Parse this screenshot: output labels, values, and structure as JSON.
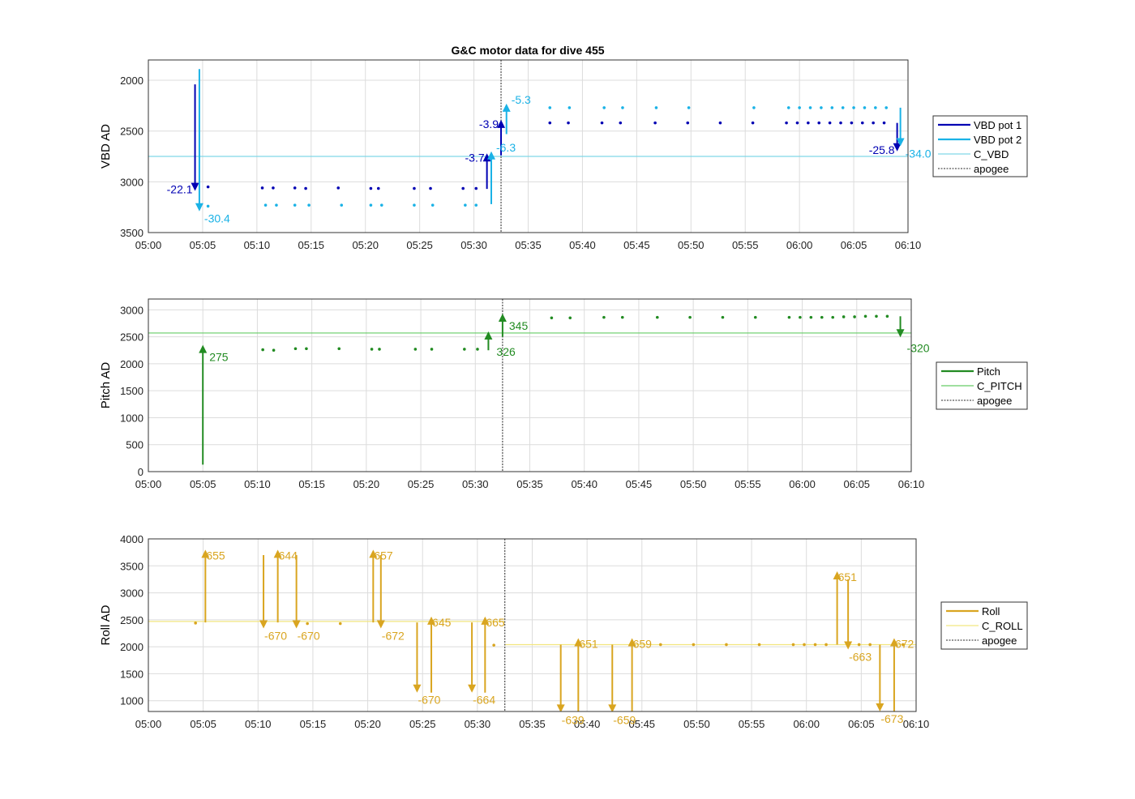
{
  "figure_title": "G&C motor data for dive 455",
  "time_ticks": [
    "05:00",
    "05:05",
    "05:10",
    "05:15",
    "05:20",
    "05:25",
    "05:30",
    "05:35",
    "05:40",
    "05:45",
    "05:50",
    "05:55",
    "06:00",
    "06:05",
    "06:10"
  ],
  "colors": {
    "vbd1": "#0000b3",
    "vbd2": "#1ab2e6",
    "c_vbd": "#80d8e6",
    "pitch": "#228b22",
    "c_pitch": "#66cc66",
    "roll": "#d9a520",
    "c_roll": "#f2e680",
    "apogee": "#555555",
    "grid": "#dcdcdc"
  },
  "chart_data": [
    {
      "type": "line",
      "title": "G&C motor data for dive 455",
      "ylabel": "VBD AD",
      "ylim": [
        3500,
        1800
      ],
      "y_reversed": true,
      "yticks": [
        2000,
        2500,
        3000,
        3500
      ],
      "xlim": [
        "05:00",
        "06:10"
      ],
      "grid": true,
      "legend_position": "outside-right",
      "legend": [
        "VBD pot 1",
        "VBD pot 2",
        "C_VBD",
        "apogee"
      ],
      "reference_lines": [
        {
          "name": "C_VBD",
          "y": 2750
        }
      ],
      "apogee": "05:32.5",
      "series": [
        {
          "name": "VBD pot 1",
          "points": [
            {
              "x": "05:05.5",
              "y": 3050
            },
            {
              "x": "05:10.5",
              "y": 3060
            },
            {
              "x": "05:11.5",
              "y": 3060
            },
            {
              "x": "05:13.5",
              "y": 3060
            },
            {
              "x": "05:14.5",
              "y": 3065
            },
            {
              "x": "05:17.5",
              "y": 3060
            },
            {
              "x": "05:20.5",
              "y": 3065
            },
            {
              "x": "05:21.2",
              "y": 3065
            },
            {
              "x": "05:24.5",
              "y": 3065
            },
            {
              "x": "05:26.0",
              "y": 3065
            },
            {
              "x": "05:29.0",
              "y": 3065
            },
            {
              "x": "05:30.2",
              "y": 3065
            },
            {
              "x": "05:37.0",
              "y": 2420
            },
            {
              "x": "05:38.7",
              "y": 2420
            },
            {
              "x": "05:41.8",
              "y": 2420
            },
            {
              "x": "05:43.5",
              "y": 2420
            },
            {
              "x": "05:46.7",
              "y": 2420
            },
            {
              "x": "05:49.7",
              "y": 2420
            },
            {
              "x": "05:52.7",
              "y": 2420
            },
            {
              "x": "05:55.7",
              "y": 2420
            },
            {
              "x": "05:58.8",
              "y": 2420
            },
            {
              "x": "05:59.8",
              "y": 2420
            },
            {
              "x": "06:00.8",
              "y": 2420
            },
            {
              "x": "06:01.8",
              "y": 2420
            },
            {
              "x": "06:02.8",
              "y": 2420
            },
            {
              "x": "06:03.8",
              "y": 2420
            },
            {
              "x": "06:04.8",
              "y": 2420
            },
            {
              "x": "06:05.8",
              "y": 2420
            },
            {
              "x": "06:06.8",
              "y": 2420
            },
            {
              "x": "06:07.8",
              "y": 2420
            }
          ],
          "moves": [
            {
              "x": "05:04.3",
              "y_start": 2040,
              "y_end": 3090,
              "label": "-22.1"
            },
            {
              "x": "05:31.2",
              "y_start": 3070,
              "y_end": 2720,
              "label": "-3.7"
            },
            {
              "x": "05:32.5",
              "y_start": 2740,
              "y_end": 2390,
              "label": "-3.9"
            },
            {
              "x": "06:09.0",
              "y_start": 2420,
              "y_end": 2700,
              "label": "-25.8"
            }
          ]
        },
        {
          "name": "VBD pot 2",
          "points": [
            {
              "x": "05:05.5",
              "y": 3240
            },
            {
              "x": "05:10.8",
              "y": 3230
            },
            {
              "x": "05:11.8",
              "y": 3230
            },
            {
              "x": "05:13.5",
              "y": 3230
            },
            {
              "x": "05:14.8",
              "y": 3230
            },
            {
              "x": "05:17.8",
              "y": 3230
            },
            {
              "x": "05:20.5",
              "y": 3230
            },
            {
              "x": "05:21.5",
              "y": 3230
            },
            {
              "x": "05:24.5",
              "y": 3230
            },
            {
              "x": "05:26.2",
              "y": 3230
            },
            {
              "x": "05:29.2",
              "y": 3230
            },
            {
              "x": "05:30.2",
              "y": 3230
            },
            {
              "x": "05:37.0",
              "y": 2270
            },
            {
              "x": "05:38.8",
              "y": 2270
            },
            {
              "x": "05:42.0",
              "y": 2270
            },
            {
              "x": "05:43.7",
              "y": 2270
            },
            {
              "x": "05:46.8",
              "y": 2270
            },
            {
              "x": "05:49.8",
              "y": 2270
            },
            {
              "x": "05:55.8",
              "y": 2270
            },
            {
              "x": "05:59.0",
              "y": 2270
            },
            {
              "x": "06:00.0",
              "y": 2270
            },
            {
              "x": "06:01.0",
              "y": 2270
            },
            {
              "x": "06:02.0",
              "y": 2270
            },
            {
              "x": "06:03.0",
              "y": 2270
            },
            {
              "x": "06:04.0",
              "y": 2270
            },
            {
              "x": "06:05.0",
              "y": 2270
            },
            {
              "x": "06:06.0",
              "y": 2270
            },
            {
              "x": "06:07.0",
              "y": 2270
            },
            {
              "x": "06:08.0",
              "y": 2270
            }
          ],
          "moves": [
            {
              "x": "05:04.7",
              "y_start": 1890,
              "y_end": 3290,
              "label": "-30.4"
            },
            {
              "x": "05:31.6",
              "y_start": 3220,
              "y_end": 2700,
              "label": "-6.3"
            },
            {
              "x": "05:33.0",
              "y_start": 2530,
              "y_end": 2230,
              "label": "-5.3"
            },
            {
              "x": "06:09.3",
              "y_start": 2270,
              "y_end": 2650,
              "label": "-34.0"
            }
          ]
        }
      ]
    },
    {
      "type": "line",
      "ylabel": "Pitch AD",
      "ylim": [
        0,
        3200
      ],
      "yticks": [
        0,
        500,
        1000,
        1500,
        2000,
        2500,
        3000
      ],
      "xlim": [
        "05:00",
        "06:10"
      ],
      "grid": true,
      "legend_position": "outside-right",
      "legend": [
        "Pitch",
        "C_PITCH",
        "apogee"
      ],
      "reference_lines": [
        {
          "name": "C_PITCH",
          "y": 2570
        }
      ],
      "apogee": "05:32.5",
      "series": [
        {
          "name": "Pitch",
          "points": [
            {
              "x": "05:10.5",
              "y": 2260
            },
            {
              "x": "05:11.5",
              "y": 2250
            },
            {
              "x": "05:13.5",
              "y": 2280
            },
            {
              "x": "05:14.5",
              "y": 2280
            },
            {
              "x": "05:17.5",
              "y": 2280
            },
            {
              "x": "05:20.5",
              "y": 2270
            },
            {
              "x": "05:21.2",
              "y": 2270
            },
            {
              "x": "05:24.5",
              "y": 2270
            },
            {
              "x": "05:26.0",
              "y": 2270
            },
            {
              "x": "05:29.0",
              "y": 2270
            },
            {
              "x": "05:30.2",
              "y": 2270
            },
            {
              "x": "05:37.0",
              "y": 2850
            },
            {
              "x": "05:38.7",
              "y": 2850
            },
            {
              "x": "05:41.8",
              "y": 2860
            },
            {
              "x": "05:43.5",
              "y": 2860
            },
            {
              "x": "05:46.7",
              "y": 2860
            },
            {
              "x": "05:49.7",
              "y": 2860
            },
            {
              "x": "05:52.7",
              "y": 2860
            },
            {
              "x": "05:55.7",
              "y": 2860
            },
            {
              "x": "05:58.8",
              "y": 2860
            },
            {
              "x": "05:59.8",
              "y": 2860
            },
            {
              "x": "06:00.8",
              "y": 2860
            },
            {
              "x": "06:01.8",
              "y": 2860
            },
            {
              "x": "06:02.8",
              "y": 2860
            },
            {
              "x": "06:03.8",
              "y": 2870
            },
            {
              "x": "06:04.8",
              "y": 2870
            },
            {
              "x": "06:05.8",
              "y": 2880
            },
            {
              "x": "06:06.8",
              "y": 2880
            },
            {
              "x": "06:07.8",
              "y": 2880
            }
          ],
          "moves": [
            {
              "x": "05:05.0",
              "y_start": 130,
              "y_end": 2350,
              "label": "275"
            },
            {
              "x": "05:31.2",
              "y_start": 2250,
              "y_end": 2600,
              "label": "326"
            },
            {
              "x": "05:32.5",
              "y_start": 2500,
              "y_end": 2930,
              "label": "345"
            },
            {
              "x": "06:09.0",
              "y_start": 2880,
              "y_end": 2490,
              "label": "-320"
            }
          ]
        }
      ]
    },
    {
      "type": "line",
      "ylabel": "Roll AD",
      "ylim": [
        800,
        4000
      ],
      "yticks": [
        1000,
        1500,
        2000,
        2500,
        3000,
        3500,
        4000
      ],
      "xlim": [
        "05:00",
        "06:10"
      ],
      "grid": true,
      "legend_position": "outside-right",
      "legend": [
        "Roll",
        "C_ROLL",
        "apogee"
      ],
      "reference_lines": [
        {
          "name": "C_ROLL",
          "y": 2470,
          "x_end": "05:32.5"
        },
        {
          "name": "C_ROLL",
          "y": 2040,
          "x_start": "05:32.5"
        }
      ],
      "apogee": "05:32.5",
      "series": [
        {
          "name": "Roll",
          "points": [
            {
              "x": "05:04.3",
              "y": 2440
            },
            {
              "x": "05:14.5",
              "y": 2430
            },
            {
              "x": "05:17.5",
              "y": 2430
            },
            {
              "x": "05:31.5",
              "y": 2030
            },
            {
              "x": "05:46.7",
              "y": 2040
            },
            {
              "x": "05:49.7",
              "y": 2040
            },
            {
              "x": "05:52.7",
              "y": 2040
            },
            {
              "x": "05:55.7",
              "y": 2040
            },
            {
              "x": "05:58.8",
              "y": 2040
            },
            {
              "x": "05:59.8",
              "y": 2040
            },
            {
              "x": "06:00.8",
              "y": 2040
            },
            {
              "x": "06:01.8",
              "y": 2040
            },
            {
              "x": "06:04.8",
              "y": 2040
            },
            {
              "x": "06:05.8",
              "y": 2040
            },
            {
              "x": "06:08.8",
              "y": 2040
            }
          ],
          "moves": [
            {
              "x": "05:05.2",
              "y_start": 2450,
              "y_end": 3800,
              "label": "655"
            },
            {
              "x": "05:10.5",
              "y_start": 3700,
              "y_end": 2340,
              "label": "-670"
            },
            {
              "x": "05:11.8",
              "y_start": 2450,
              "y_end": 3800,
              "label": "644"
            },
            {
              "x": "05:13.5",
              "y_start": 3700,
              "y_end": 2340,
              "label": "-670"
            },
            {
              "x": "05:20.5",
              "y_start": 2450,
              "y_end": 3800,
              "label": "657"
            },
            {
              "x": "05:21.2",
              "y_start": 3700,
              "y_end": 2340,
              "label": "-672"
            },
            {
              "x": "05:24.5",
              "y_start": 2450,
              "y_end": 1150,
              "label": "-670"
            },
            {
              "x": "05:25.8",
              "y_start": 1150,
              "y_end": 2560,
              "label": "645"
            },
            {
              "x": "05:29.5",
              "y_start": 2450,
              "y_end": 1150,
              "label": "-664"
            },
            {
              "x": "05:30.7",
              "y_start": 1150,
              "y_end": 2560,
              "label": "665"
            },
            {
              "x": "05:37.6",
              "y_start": 2040,
              "y_end": 780,
              "label": "-639"
            },
            {
              "x": "05:39.2",
              "y_start": 800,
              "y_end": 2160,
              "label": "651"
            },
            {
              "x": "05:42.3",
              "y_start": 2040,
              "y_end": 780,
              "label": "-659"
            },
            {
              "x": "05:44.1",
              "y_start": 800,
              "y_end": 2160,
              "label": "659"
            },
            {
              "x": "06:02.8",
              "y_start": 2040,
              "y_end": 3400,
              "label": "651"
            },
            {
              "x": "06:03.8",
              "y_start": 3250,
              "y_end": 1950,
              "label": "-663"
            },
            {
              "x": "06:06.7",
              "y_start": 2040,
              "y_end": 800,
              "label": "-673"
            },
            {
              "x": "06:08.0",
              "y_start": 800,
              "y_end": 2160,
              "label": "672"
            }
          ]
        }
      ]
    }
  ]
}
